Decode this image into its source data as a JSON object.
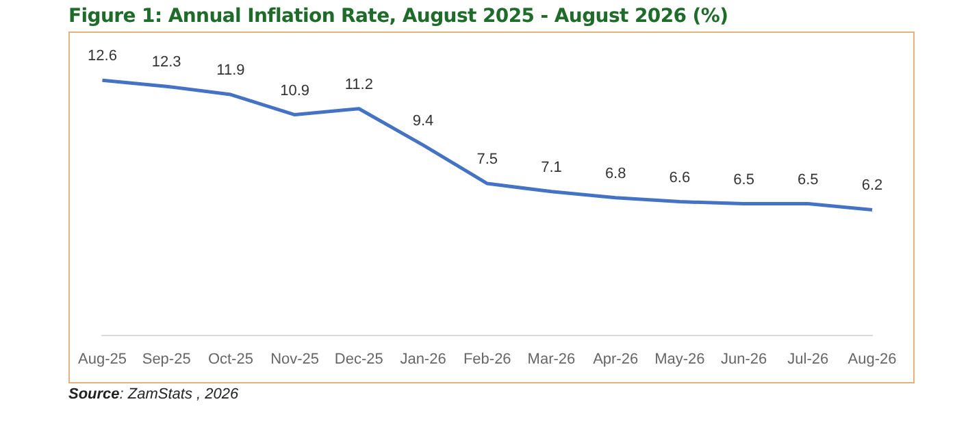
{
  "chart_data": {
    "type": "line",
    "title": "Figure 1: Annual Inflation Rate, August 2025 - August 2026 (%)",
    "categories": [
      "Aug-25",
      "Sep-25",
      "Oct-25",
      "Nov-25",
      "Dec-25",
      "Jan-26",
      "Feb-26",
      "Mar-26",
      "Apr-26",
      "May-26",
      "Jun-26",
      "Jul-26",
      "Aug-26"
    ],
    "series": [
      {
        "color": "#4472c4",
        "values": [
          12.6,
          12.3,
          11.9,
          10.9,
          11.2,
          9.4,
          7.5,
          7.1,
          6.8,
          6.6,
          6.5,
          6.5,
          6.2
        ]
      }
    ],
    "data_labels": true,
    "grid": false,
    "legend": false,
    "marker": "none",
    "line_style": "solid",
    "annotations": [
      "Source: ZamStats , 2026"
    ]
  }
}
